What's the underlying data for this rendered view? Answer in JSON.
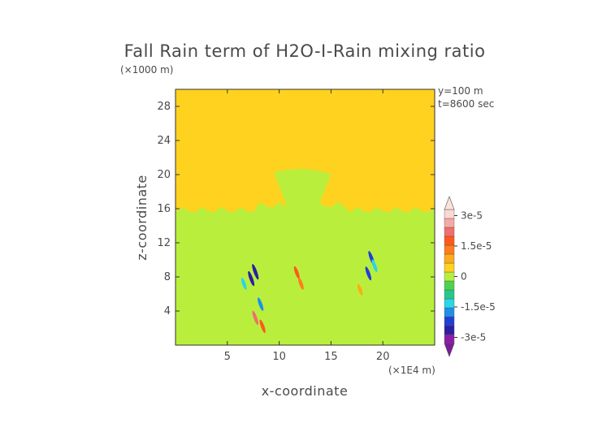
{
  "chart_data": {
    "type": "heatmap",
    "title": "Fall Rain term of H2O-I-Rain mixing ratio",
    "xlabel": "x-coordinate",
    "ylabel": "z-coordinate",
    "x_unit": "(×1E4 m)",
    "y_unit": "(×1000 m)",
    "annotations": [
      "y=100 m",
      "t=8600 sec"
    ],
    "xlim": [
      0,
      25
    ],
    "ylim": [
      0,
      30
    ],
    "x_ticks": [
      5,
      10,
      15,
      20
    ],
    "y_ticks": [
      4,
      8,
      12,
      16,
      20,
      24,
      28
    ],
    "background_value": 0,
    "colorbar": {
      "min": -3.3e-05,
      "max": 3.3e-05,
      "tick_values": [
        3e-05,
        1.5e-05,
        0,
        -1.5e-05,
        -3e-05
      ],
      "tick_labels": [
        "3e-5",
        "1.5e-5",
        "0",
        "-1.5e-5",
        "-3e-5"
      ],
      "colors": [
        "#8b1ea6",
        "#2b1fa3",
        "#1f3fd6",
        "#1e90e8",
        "#2ad6e8",
        "#27c78a",
        "#4fd24f",
        "#b9ef3c",
        "#ffd21f",
        "#ffab1c",
        "#ff7d1a",
        "#ff5a1a",
        "#f06f70",
        "#f5aaa5",
        "#fbd8d2"
      ]
    },
    "regions": [
      {
        "name": "rain cloud layer",
        "x": [
          0,
          25
        ],
        "z": [
          0,
          16.5
        ],
        "approx_value": 2e-06
      },
      {
        "name": "central convective tower",
        "x": [
          9.5,
          15
        ],
        "z": [
          15,
          20.8
        ],
        "approx_value": 2e-06
      }
    ],
    "features": [
      {
        "x": 7.3,
        "z": 7.8,
        "value": -2.5e-05
      },
      {
        "x": 7.7,
        "z": 8.6,
        "value": -2.8e-05
      },
      {
        "x": 8.2,
        "z": 4.8,
        "value": -1.8e-05
      },
      {
        "x": 6.6,
        "z": 7.2,
        "value": -1.2e-05
      },
      {
        "x": 18.6,
        "z": 8.4,
        "value": -2e-05
      },
      {
        "x": 18.9,
        "z": 10.2,
        "value": -2.2e-05
      },
      {
        "x": 19.2,
        "z": 9.3,
        "value": -1.5e-05
      },
      {
        "x": 7.7,
        "z": 3.2,
        "value": 2.2e-05
      },
      {
        "x": 8.4,
        "z": 2.2,
        "value": 1.8e-05
      },
      {
        "x": 11.7,
        "z": 8.5,
        "value": 1.6e-05
      },
      {
        "x": 12.1,
        "z": 7.2,
        "value": 1.2e-05
      },
      {
        "x": 17.8,
        "z": 6.5,
        "value": 1e-05
      }
    ]
  }
}
